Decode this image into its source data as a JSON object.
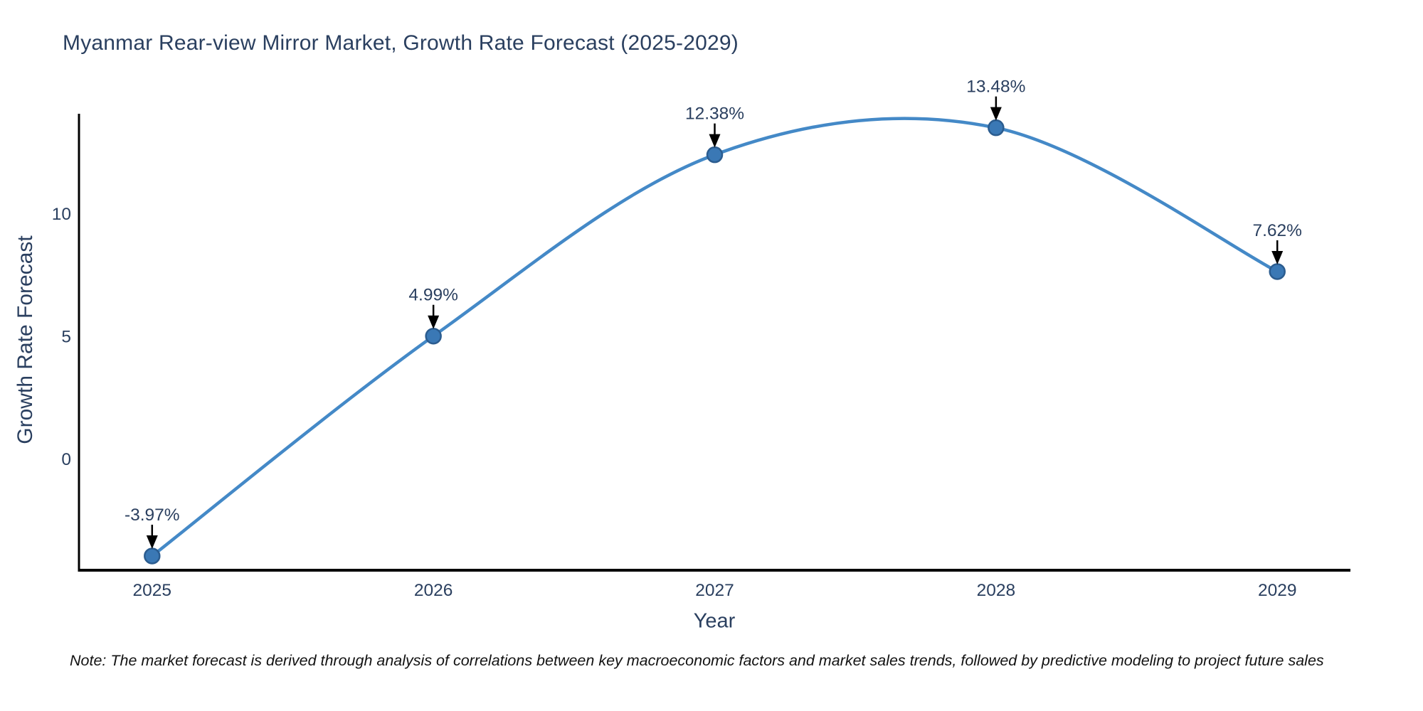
{
  "chart_data": {
    "type": "line",
    "title": "Myanmar Rear-view Mirror Market, Growth Rate Forecast (2025-2029)",
    "xlabel": "Year",
    "ylabel": "Growth Rate Forecast",
    "x": [
      2025,
      2026,
      2027,
      2028,
      2029
    ],
    "series": [
      {
        "name": "Growth Rate Forecast",
        "values": [
          -3.97,
          4.99,
          12.38,
          13.48,
          7.62
        ],
        "point_labels": [
          "-3.97%",
          "4.99%",
          "12.38%",
          "13.48%",
          "7.62%"
        ]
      }
    ],
    "yticks": [
      0,
      5,
      10
    ],
    "xlim": [
      2024.74,
      2029.26
    ],
    "ylim": [
      -4.55,
      14.05
    ],
    "line_shape": "spline",
    "grid": false,
    "legend_position": "none",
    "colors": {
      "line": "#4489c7",
      "marker_fill": "#3a78b5",
      "marker_edge": "#2b5c8f",
      "axis": "#000000",
      "text": "#2a3f5f",
      "annotation_arrow": "#000000"
    }
  },
  "note": "Note: The market forecast is derived through analysis of correlations between key macroeconomic factors and market sales trends, followed by predictive modeling to project future sales"
}
